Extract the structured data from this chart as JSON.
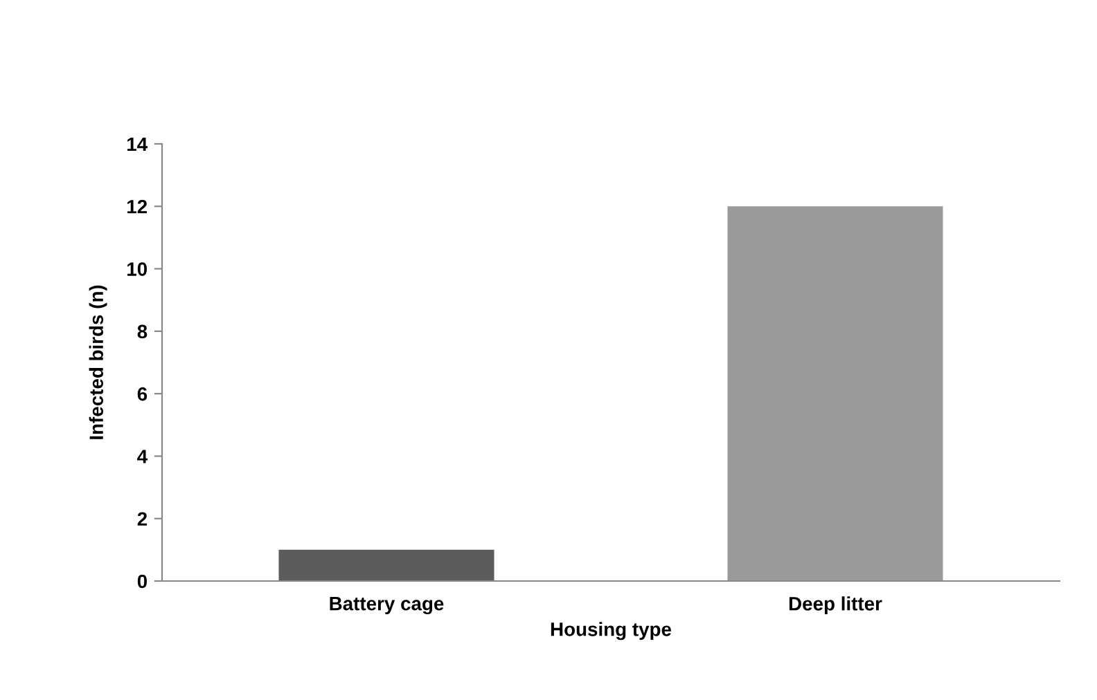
{
  "chart_data": {
    "type": "bar",
    "xlabel": "Housing type",
    "ylabel": "Infected birds (n)",
    "categories": [
      "Battery cage",
      "Deep litter"
    ],
    "values": [
      1,
      12
    ],
    "colors": [
      "#5c5c5c",
      "#9a9a9a"
    ],
    "ylim": [
      0,
      14
    ],
    "yticks": [
      0,
      2,
      4,
      6,
      8,
      10,
      12,
      14
    ],
    "grid": false
  }
}
